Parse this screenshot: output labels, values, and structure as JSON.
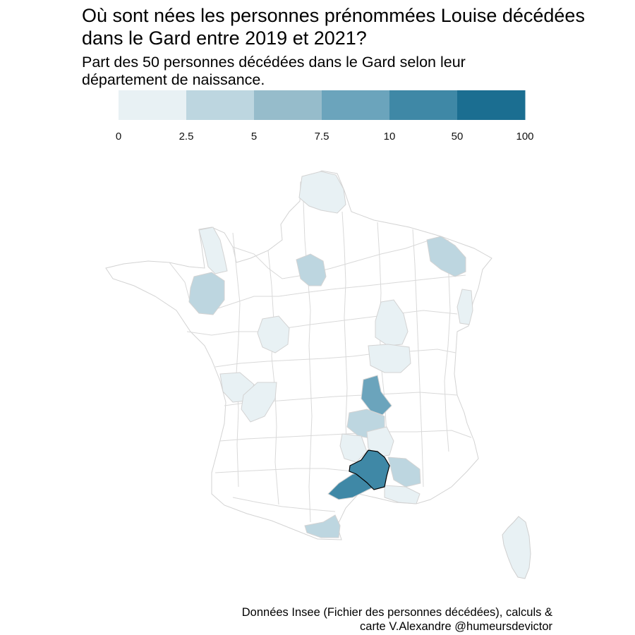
{
  "title_line1": "Où sont nées les personnes prénommées Louise décédées",
  "title_line2": "dans le Gard entre 2019 et 2021?",
  "subtitle_line1": "Part des 50 personnes décédées dans le Gard selon leur",
  "subtitle_line2": "département de naissance.",
  "caption_line1": "Données Insee (Fichier des personnes décédées), calculs &",
  "caption_line2": "carte V.Alexandre @humeursdevictor",
  "legend": {
    "breaks": [
      "0",
      "2.5",
      "5",
      "7.5",
      "10",
      "50",
      "100"
    ],
    "colors": [
      "#e8f1f4",
      "#bdd6e0",
      "#96bccb",
      "#6ba4bc",
      "#3f88a6",
      "#1b6e91"
    ]
  },
  "map": {
    "outline_color": "#d3d3d3",
    "highlight_outline": "#000000",
    "default_fill": "#ffffff",
    "highlighted_department": "Gard"
  }
}
